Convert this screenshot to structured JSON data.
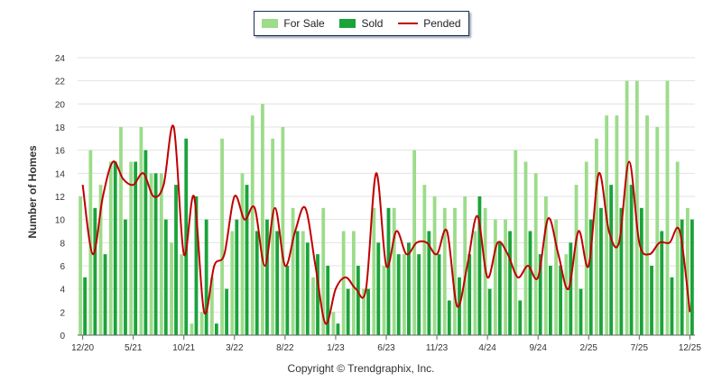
{
  "legend": {
    "for_sale": "For Sale",
    "sold": "Sold",
    "pended": "Pended"
  },
  "colors": {
    "for_sale": "#9cdc8a",
    "sold": "#1aa33a",
    "pended": "#c00000"
  },
  "copyright": "Copyright © Trendgraphix, Inc.",
  "chart_data": {
    "type": "bar",
    "title": "",
    "xlabel": "",
    "ylabel": "Number of Homes",
    "ylim": [
      0,
      24
    ],
    "yticks": [
      0,
      2,
      4,
      6,
      8,
      10,
      12,
      14,
      16,
      18,
      20,
      22,
      24
    ],
    "grid": true,
    "legend_position": "top-center",
    "x_tick_labels": [
      {
        "index": 0,
        "label": "12/20"
      },
      {
        "index": 5,
        "label": "5/21"
      },
      {
        "index": 10,
        "label": "10/21"
      },
      {
        "index": 15,
        "label": "3/22"
      },
      {
        "index": 20,
        "label": "8/22"
      },
      {
        "index": 25,
        "label": "1/23"
      },
      {
        "index": 30,
        "label": "6/23"
      },
      {
        "index": 35,
        "label": "11/23"
      },
      {
        "index": 40,
        "label": "4/24"
      },
      {
        "index": 45,
        "label": "9/24"
      },
      {
        "index": 50,
        "label": "2/25"
      },
      {
        "index": 55,
        "label": "7/25"
      },
      {
        "index": 60,
        "label": "12/25"
      }
    ],
    "categories": [
      "12/20",
      "1/21",
      "2/21",
      "3/21",
      "4/21",
      "5/21",
      "6/21",
      "7/21",
      "8/21",
      "9/21",
      "10/21",
      "11/21",
      "12/21",
      "1/22",
      "2/22",
      "3/22",
      "4/22",
      "5/22",
      "6/22",
      "7/22",
      "8/22",
      "9/22",
      "10/22",
      "11/22",
      "12/22",
      "1/23",
      "2/23",
      "3/23",
      "4/23",
      "5/23",
      "6/23",
      "7/23",
      "8/23",
      "9/23",
      "10/23",
      "11/23",
      "12/23",
      "1/24",
      "2/24",
      "3/24",
      "4/24",
      "5/24",
      "6/24",
      "7/24",
      "8/24",
      "9/24",
      "10/24",
      "11/24",
      "12/24",
      "1/25",
      "2/25",
      "3/25",
      "4/25",
      "5/25",
      "6/25",
      "7/25",
      "8/25",
      "9/25",
      "10/25",
      "11/25",
      "12/25"
    ],
    "series": [
      {
        "name": "For Sale",
        "type": "bar",
        "values": [
          12,
          16,
          13,
          15,
          18,
          15,
          18,
          14,
          14,
          8,
          7,
          1,
          2,
          5,
          17,
          9,
          14,
          19,
          20,
          17,
          18,
          11,
          9,
          5,
          11,
          2,
          9,
          9,
          4,
          11,
          6,
          11,
          7,
          16,
          13,
          12,
          11,
          11,
          12,
          9,
          11,
          10,
          10,
          16,
          15,
          14,
          12,
          10,
          7,
          13,
          15,
          17,
          19,
          19,
          22,
          22,
          19,
          18,
          22,
          15,
          11
        ]
      },
      {
        "name": "Sold",
        "type": "bar",
        "values": [
          5,
          11,
          7,
          15,
          10,
          15,
          16,
          14,
          10,
          13,
          17,
          12,
          10,
          1,
          4,
          10,
          13,
          9,
          10,
          9,
          6,
          9,
          8,
          7,
          6,
          1,
          4,
          6,
          4,
          8,
          11,
          7,
          8,
          7,
          9,
          7,
          3,
          5,
          7,
          12,
          4,
          8,
          9,
          3,
          9,
          7,
          6,
          6,
          8,
          4,
          10,
          11,
          13,
          11,
          13,
          11,
          6,
          9,
          5,
          10,
          10
        ]
      },
      {
        "name": "Pended",
        "type": "line",
        "values": [
          13,
          7,
          12,
          15,
          13.5,
          13,
          14,
          12,
          13,
          18,
          7,
          12,
          2,
          6,
          7,
          12,
          10,
          11,
          6,
          11,
          6,
          9,
          11,
          6,
          1,
          4,
          5,
          4,
          4,
          14,
          6,
          9,
          7,
          8,
          8,
          7,
          9,
          2.5,
          6,
          10.3,
          5,
          8,
          7,
          5,
          6,
          5,
          10.1,
          7,
          4,
          9,
          6,
          14,
          9,
          8,
          15,
          8,
          7,
          8,
          8,
          9,
          2
        ]
      }
    ]
  }
}
